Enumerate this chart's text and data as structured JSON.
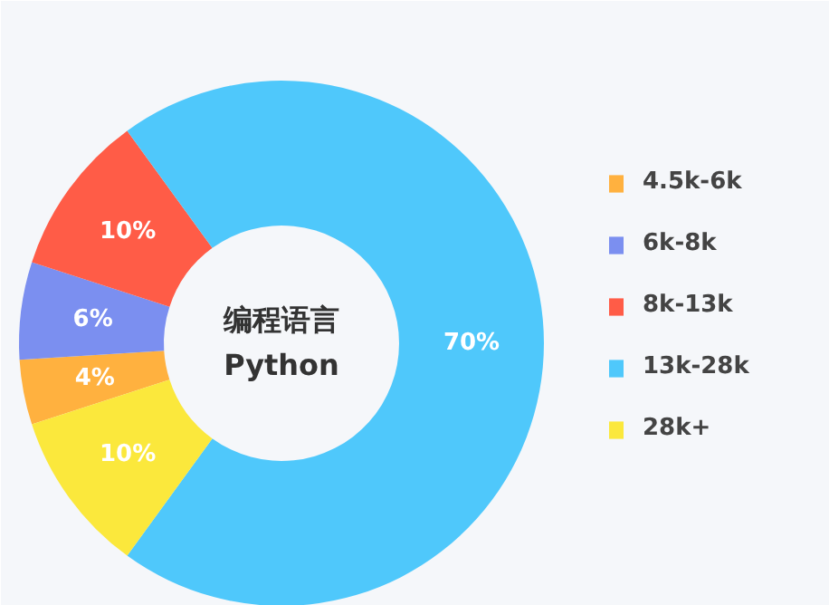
{
  "chart_data": {
    "type": "donut",
    "title": "编程语言",
    "subtitle": "Python",
    "categories": [
      "4.5k-6k",
      "6k-8k",
      "8k-13k",
      "13k-28k",
      "28k+"
    ],
    "values": [
      4,
      6,
      10,
      70,
      10
    ],
    "colors": [
      "#ffb13f",
      "#7b8ff0",
      "#ff5c47",
      "#4fc8fb",
      "#fbe83c"
    ],
    "value_labels": [
      "4%",
      "6%",
      "10%",
      "70%",
      "10%"
    ],
    "legend": "right"
  }
}
